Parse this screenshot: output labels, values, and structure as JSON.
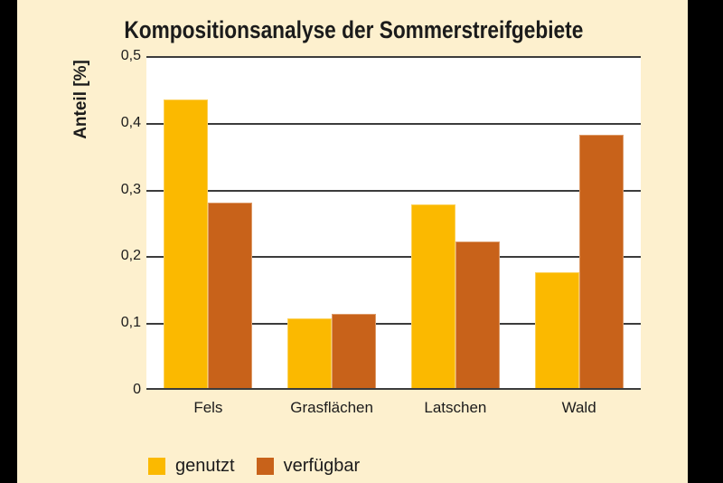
{
  "chart_data": {
    "type": "bar",
    "title": "Kompositionsanalyse der Sommerstreifgebiete",
    "ylabel": "Anteil [%]",
    "xlabel": "",
    "categories": [
      "Fels",
      "Grasflächen",
      "Latschen",
      "Wald"
    ],
    "series": [
      {
        "name": "genutzt",
        "color": "#FBB900",
        "values": [
          0.435,
          0.107,
          0.278,
          0.176
        ]
      },
      {
        "name": "verfügbar",
        "color": "#C8621A",
        "values": [
          0.28,
          0.114,
          0.222,
          0.382
        ]
      }
    ],
    "ylim": [
      0,
      0.5
    ],
    "yticks": [
      {
        "value": 0.5,
        "label": "0,5"
      },
      {
        "value": 0.4,
        "label": "0,4"
      },
      {
        "value": 0.3,
        "label": "0,3"
      },
      {
        "value": 0.2,
        "label": "0,2"
      },
      {
        "value": 0.1,
        "label": "0,1"
      },
      {
        "value": 0.0,
        "label": "0"
      }
    ],
    "grid": true,
    "legend_position": "bottom",
    "colors": {
      "frame": "#000000",
      "background": "#FDF0CE",
      "plot_background": "#FFFFFF",
      "gridline": "#3C3C3C",
      "text": "#1B1B1B"
    }
  }
}
